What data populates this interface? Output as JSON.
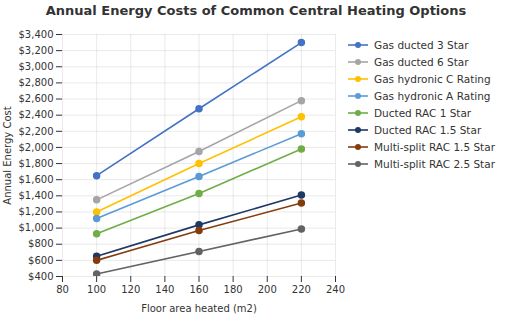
{
  "chart_data": {
    "type": "line",
    "title": "Annual Energy Costs of Common Central Heating Options",
    "xlabel": "Floor area heated (m2)",
    "ylabel": "Annual Energy Cost",
    "x": [
      100,
      160,
      220
    ],
    "series": [
      {
        "name": "Gas ducted 3 Star",
        "color": "#4472C4",
        "marker": "circle",
        "line_style": "solid",
        "values": [
          1650,
          2480,
          3300
        ]
      },
      {
        "name": "Gas ducted 6 Star",
        "color": "#A5A5A5",
        "marker": "circle",
        "line_style": "solid",
        "values": [
          1350,
          1950,
          2580
        ]
      },
      {
        "name": "Gas hydronic C Rating",
        "color": "#FFC000",
        "marker": "circle",
        "line_style": "solid",
        "values": [
          1200,
          1800,
          2380
        ]
      },
      {
        "name": "Gas hydronic A Rating",
        "color": "#5B9BD5",
        "marker": "circle",
        "line_style": "solid",
        "values": [
          1120,
          1640,
          2170
        ]
      },
      {
        "name": "Ducted RAC 1 Star",
        "color": "#70AD47",
        "marker": "circle",
        "line_style": "solid",
        "values": [
          930,
          1430,
          1980
        ]
      },
      {
        "name": "Ducted RAC 1.5 Star",
        "color": "#203864",
        "marker": "circle",
        "line_style": "solid",
        "values": [
          650,
          1040,
          1410
        ]
      },
      {
        "name": "Multi-split RAC 1.5 Star",
        "color": "#843C0C",
        "marker": "circle",
        "line_style": "solid",
        "values": [
          600,
          970,
          1310
        ]
      },
      {
        "name": "Multi-split RAC 2.5 Star",
        "color": "#636363",
        "marker": "circle",
        "line_style": "solid",
        "values": [
          430,
          710,
          990
        ]
      }
    ],
    "xlim": [
      80,
      240
    ],
    "ylim": [
      400,
      3400
    ],
    "xticks": [
      80,
      100,
      120,
      140,
      160,
      180,
      200,
      220,
      240
    ],
    "yticks": [
      {
        "value": 400,
        "label": "$400"
      },
      {
        "value": 600,
        "label": "$600"
      },
      {
        "value": 800,
        "label": "$800"
      },
      {
        "value": 1000,
        "label": "$1,000"
      },
      {
        "value": 1200,
        "label": "$1,200"
      },
      {
        "value": 1400,
        "label": "$1,400"
      },
      {
        "value": 1600,
        "label": "$1,600"
      },
      {
        "value": 1800,
        "label": "$1,800"
      },
      {
        "value": 2000,
        "label": "$2,000"
      },
      {
        "value": 2200,
        "label": "$2,200"
      },
      {
        "value": 2400,
        "label": "$2,400"
      },
      {
        "value": 2600,
        "label": "$2,600"
      },
      {
        "value": 2800,
        "label": "$2,800"
      },
      {
        "value": 3000,
        "label": "$3,000"
      },
      {
        "value": 3200,
        "label": "$3,200"
      },
      {
        "value": 3400,
        "label": "$3,400"
      }
    ],
    "grid": true,
    "legend": "right"
  }
}
